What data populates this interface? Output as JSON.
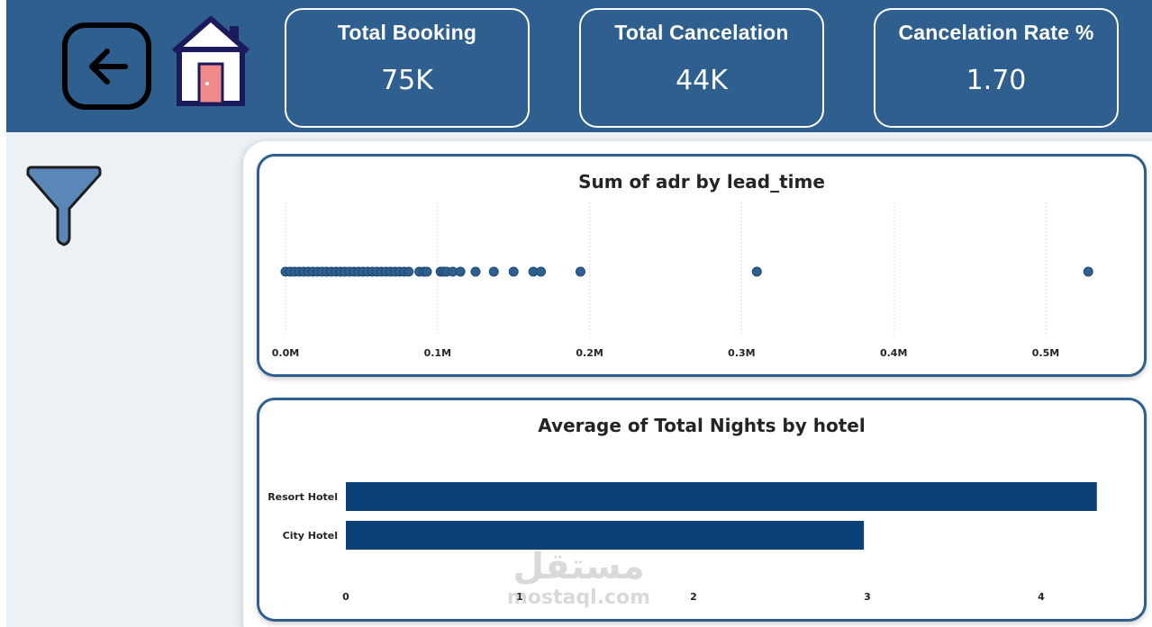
{
  "header": {
    "kpis": [
      {
        "label": "Total Booking",
        "value": "75K"
      },
      {
        "label": "Total Cancelation",
        "value": "44K"
      },
      {
        "label": "Cancelation Rate %",
        "value": "1.70"
      }
    ]
  },
  "icons": {
    "back": "arrow-left-icon",
    "home": "house-icon",
    "filter": "funnel-icon"
  },
  "colors": {
    "header_bg": "#2e5f8e",
    "sidebar_bg": "#ebf1f5",
    "accent": "#0b4176",
    "point": "#2e5f8e"
  },
  "charts": {
    "scatter": {
      "title": "Sum of adr by lead_time",
      "chart_data": {
        "type": "scatter",
        "title": "Sum of adr by lead_time",
        "xlim": [
          0,
          0.55
        ],
        "x_ticks": [
          "0.0M",
          "0.1M",
          "0.2M",
          "0.3M",
          "0.4M",
          "0.5M"
        ],
        "x_tick_values": [
          0,
          0.1,
          0.2,
          0.3,
          0.4,
          0.5
        ],
        "x_unit": "M",
        "grid": true,
        "points_x": [
          0.0,
          0.003,
          0.006,
          0.009,
          0.012,
          0.015,
          0.018,
          0.021,
          0.024,
          0.027,
          0.03,
          0.033,
          0.036,
          0.039,
          0.042,
          0.045,
          0.048,
          0.051,
          0.054,
          0.057,
          0.06,
          0.063,
          0.066,
          0.069,
          0.072,
          0.075,
          0.078,
          0.081,
          0.088,
          0.091,
          0.093,
          0.102,
          0.104,
          0.106,
          0.11,
          0.115,
          0.125,
          0.137,
          0.15,
          0.163,
          0.168,
          0.194,
          0.31,
          0.528
        ]
      }
    },
    "bar": {
      "title": "Average of Total Nights by hotel",
      "chart_data": {
        "type": "bar",
        "orientation": "horizontal",
        "title": "Average of Total Nights by hotel",
        "categories": [
          "Resort Hotel",
          "City Hotel"
        ],
        "values": [
          4.32,
          2.98
        ],
        "xlim": [
          0,
          4.4
        ],
        "x_ticks": [
          "0",
          "1",
          "2",
          "3",
          "4"
        ],
        "x_tick_values": [
          0,
          1,
          2,
          3,
          4
        ],
        "grid": false
      }
    }
  },
  "watermark": {
    "arabic": "مستقل",
    "latin": "mostaql.com"
  }
}
